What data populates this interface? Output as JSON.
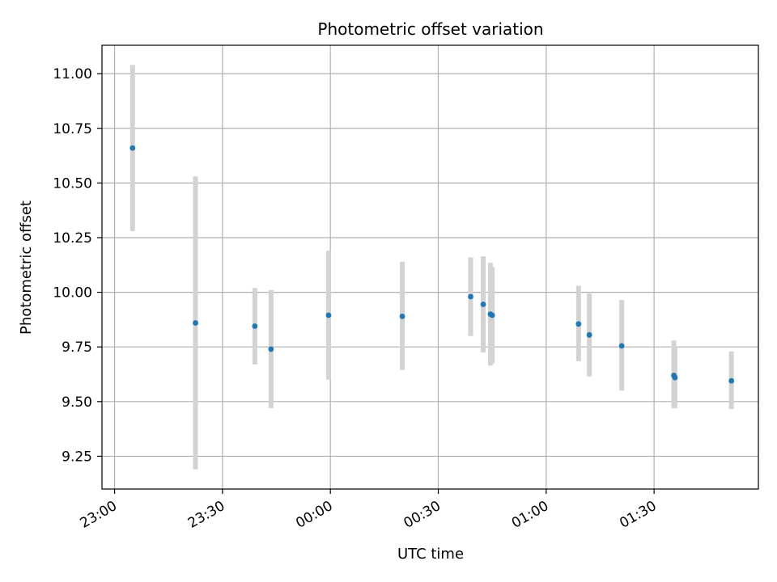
{
  "chart_data": {
    "type": "scatter",
    "title": "Photometric offset variation",
    "xlabel": "UTC time",
    "ylabel": "Photometric offset",
    "x_unit": "minutes from 23:00 UTC",
    "x_ticks": [
      {
        "value": 0,
        "label": "23:00"
      },
      {
        "value": 30,
        "label": "23:30"
      },
      {
        "value": 60,
        "label": "00:00"
      },
      {
        "value": 90,
        "label": "00:30"
      },
      {
        "value": 120,
        "label": "01:00"
      },
      {
        "value": 150,
        "label": "01:30"
      }
    ],
    "y_ticks": [
      "11.00",
      "10.75",
      "10.50",
      "10.25",
      "10.00",
      "9.75",
      "9.50",
      "9.25"
    ],
    "xlim": [
      -3.5,
      179
    ],
    "ylim": [
      9.1,
      11.13
    ],
    "grid": true,
    "colors": {
      "point": "#1f77b4",
      "errorbar": "#d3d3d3",
      "grid": "#b0b0b0"
    },
    "points": [
      {
        "x": 5.0,
        "y": 10.66,
        "err_low": 10.28,
        "err_high": 11.04
      },
      {
        "x": 22.5,
        "y": 9.86,
        "err_low": 9.19,
        "err_high": 10.53
      },
      {
        "x": 39.0,
        "y": 9.845,
        "err_low": 9.67,
        "err_high": 10.02
      },
      {
        "x": 43.5,
        "y": 9.74,
        "err_low": 9.47,
        "err_high": 10.01
      },
      {
        "x": 59.5,
        "y": 9.895,
        "err_low": 9.6,
        "err_high": 10.19
      },
      {
        "x": 80.0,
        "y": 9.89,
        "err_low": 9.645,
        "err_high": 10.14
      },
      {
        "x": 99.0,
        "y": 9.98,
        "err_low": 9.8,
        "err_high": 10.16
      },
      {
        "x": 102.5,
        "y": 9.945,
        "err_low": 9.725,
        "err_high": 10.165
      },
      {
        "x": 104.5,
        "y": 9.9,
        "err_low": 9.665,
        "err_high": 10.135
      },
      {
        "x": 105.0,
        "y": 9.895,
        "err_low": 9.675,
        "err_high": 10.115
      },
      {
        "x": 129.0,
        "y": 9.855,
        "err_low": 9.685,
        "err_high": 10.03
      },
      {
        "x": 132.0,
        "y": 9.805,
        "err_low": 9.615,
        "err_high": 9.995
      },
      {
        "x": 141.0,
        "y": 9.755,
        "err_low": 9.55,
        "err_high": 9.965
      },
      {
        "x": 155.5,
        "y": 9.62,
        "err_low": 9.47,
        "err_high": 9.78
      },
      {
        "x": 155.8,
        "y": 9.61,
        "err_low": 9.47,
        "err_high": 9.755
      },
      {
        "x": 171.5,
        "y": 9.595,
        "err_low": 9.465,
        "err_high": 9.73
      }
    ]
  }
}
